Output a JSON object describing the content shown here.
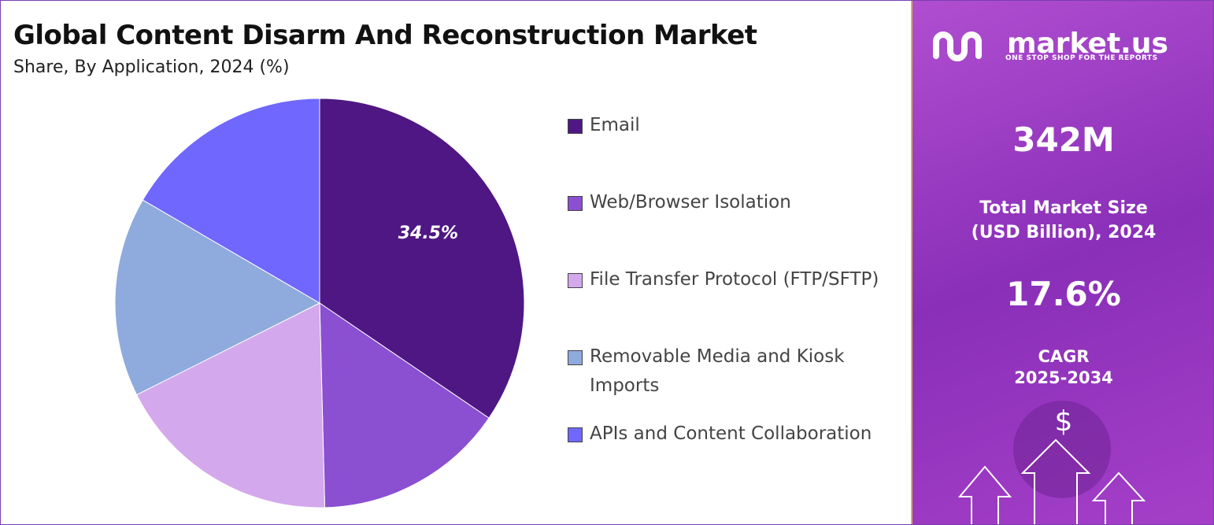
{
  "chart_data": {
    "type": "pie",
    "title": "Global Content Disarm And Reconstruction Market",
    "subtitle": "Share, By Application, 2024 (%)",
    "categories": [
      "Email",
      "Web/Browser Isolation",
      "File Transfer Protocol (FTP/SFTP)",
      "Removable Media and Kiosk Imports",
      "APIs and Content Collaboration"
    ],
    "values": [
      34.5,
      15.1,
      18.0,
      15.8,
      16.6
    ],
    "value_labels": [
      "34.5%",
      null,
      null,
      null,
      null
    ],
    "colors": [
      "#4f1783",
      "#8b4fd1",
      "#d4a8ec",
      "#8faadc",
      "#7067fe"
    ]
  },
  "panel": {
    "brand": "market.us",
    "tagline": "ONE STOP SHOP FOR THE REPORTS",
    "market_size": "342M",
    "market_size_label": "Total Market Size (USD Billion), 2024",
    "cagr": "17.6%",
    "cagr_label": "CAGR",
    "cagr_period": "2025-2034",
    "icon_symbol": "$"
  }
}
